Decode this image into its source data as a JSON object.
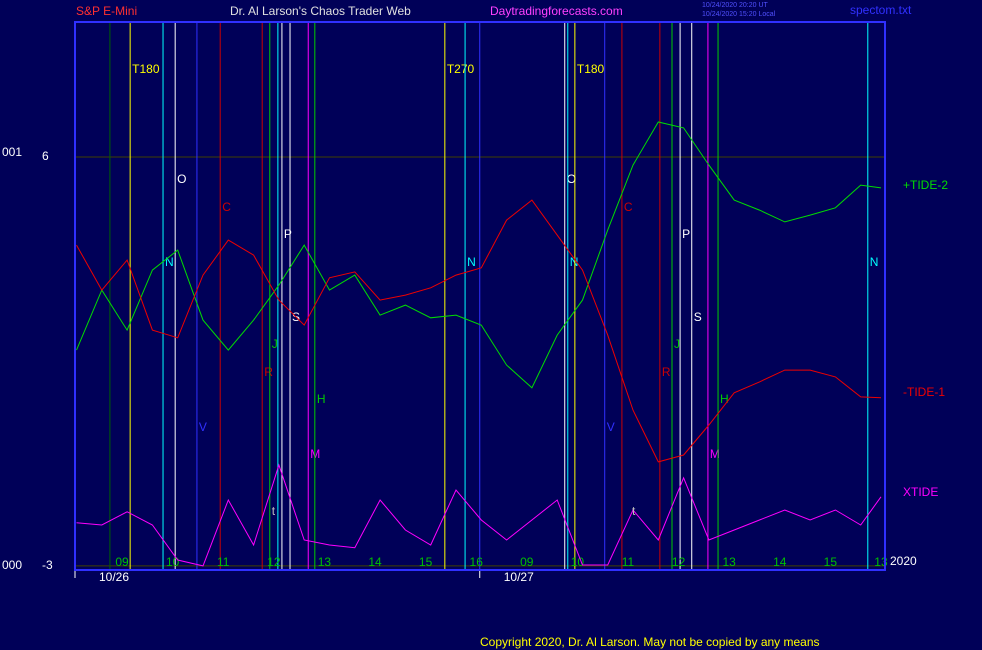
{
  "chart_data": {
    "type": "line",
    "header": {
      "instrument": "S&P E-Mini",
      "title": "Dr. Al Larson's Chaos Trader Web",
      "site": "Daytradingforecasts.com",
      "stamp_ut": "10/24/2020 20:20 UT",
      "stamp_local": "10/24/2020 15:20 Local",
      "file": "spectom.txt",
      "left_labels": [
        "001",
        "000"
      ],
      "year": "2020",
      "copyright": "Copyright 2020, Dr. Al Larson. May not be copied by any means"
    },
    "x": [
      8.1,
      8.6,
      9.1,
      9.6,
      10.1,
      10.6,
      11.1,
      11.6,
      12.1,
      12.6,
      13.1,
      13.6,
      14.1,
      14.6,
      15.1,
      15.6,
      16.1,
      16.6,
      17.1,
      17.6,
      18.1,
      18.6,
      19.1,
      19.6,
      20.1,
      20.6,
      21.1,
      21.6,
      22.1,
      22.6,
      23.1,
      23.6,
      24.0
    ],
    "series": [
      {
        "name": "+TIDE-2",
        "color": "#00dd00",
        "values": [
          1.75,
          3.07,
          2.19,
          3.51,
          3.95,
          2.41,
          1.75,
          2.41,
          3.18,
          4.06,
          3.07,
          3.4,
          2.52,
          2.74,
          2.46,
          2.52,
          2.3,
          1.42,
          0.92,
          2.08,
          2.85,
          4.39,
          5.82,
          6.77,
          6.64,
          5.82,
          5.05,
          4.83,
          4.57,
          4.72,
          4.88,
          5.38,
          5.32
        ]
      },
      {
        "name": "-TIDE-1",
        "color": "#ee0000",
        "values": [
          4.06,
          3.07,
          3.73,
          2.19,
          2.02,
          3.4,
          4.17,
          3.84,
          2.85,
          2.3,
          3.34,
          3.47,
          2.85,
          2.96,
          3.12,
          3.4,
          3.56,
          4.61,
          5.05,
          4.28,
          3.51,
          2.08,
          0.43,
          -0.71,
          -0.56,
          0.1,
          0.81,
          1.05,
          1.31,
          1.31,
          1.16,
          0.72,
          0.7
        ]
      },
      {
        "name": "XTIDE",
        "color": "#ff00ff",
        "values": [
          -2.05,
          -2.1,
          -1.81,
          -2.1,
          -2.87,
          -3.0,
          -1.55,
          -2.54,
          -0.78,
          -2.43,
          -2.54,
          -2.6,
          -1.55,
          -2.21,
          -2.54,
          -1.33,
          -1.99,
          -2.43,
          -1.99,
          -1.55,
          -2.98,
          -2.98,
          -1.77,
          -2.43,
          -1.06,
          -2.43,
          -2.21,
          -1.99,
          -1.77,
          -1.99,
          -1.77,
          -2.1,
          -1.48
        ]
      }
    ],
    "markers": [
      {
        "x": 8.76,
        "color": "#006000",
        "label": null
      },
      {
        "x": 9.16,
        "color": "#ffff00",
        "label": "T180"
      },
      {
        "x": 9.81,
        "color": "#00ffff",
        "label": "N"
      },
      {
        "x": 10.05,
        "color": "#ffffff",
        "label": "O"
      },
      {
        "x": 10.48,
        "color": "#3030ff",
        "label": "V"
      },
      {
        "x": 10.94,
        "color": "#cc0000",
        "label": "C"
      },
      {
        "x": 11.77,
        "color": "#cc0000",
        "label": "R"
      },
      {
        "x": 11.92,
        "color": "#00cc00",
        "label": "J"
      },
      {
        "x": 12.08,
        "color": "#00ffff",
        "label": null
      },
      {
        "x": 12.16,
        "color": "#ffffff",
        "label": "P"
      },
      {
        "x": 12.32,
        "color": "#ffffff",
        "label": "S"
      },
      {
        "x": 12.68,
        "color": "#ff00ff",
        "label": "M"
      },
      {
        "x": 12.81,
        "color": "#00cc00",
        "label": "H"
      },
      {
        "x": 15.38,
        "color": "#ffff00",
        "label": "T270"
      },
      {
        "x": 15.78,
        "color": "#00ffff",
        "label": "N"
      },
      {
        "x": 16.07,
        "color": "#3030ff",
        "label": null
      },
      {
        "x": 17.75,
        "color": "#ffffff",
        "label": "O"
      },
      {
        "x": 17.81,
        "color": "#00ffff",
        "label": "N"
      },
      {
        "x": 17.95,
        "color": "#ffff00",
        "label": "T180"
      },
      {
        "x": 18.54,
        "color": "#3030ff",
        "label": "V"
      },
      {
        "x": 18.88,
        "color": "#cc0000",
        "label": "C"
      },
      {
        "x": 19.63,
        "color": "#cc0000",
        "label": "R"
      },
      {
        "x": 19.87,
        "color": "#00cc00",
        "label": "J"
      },
      {
        "x": 20.03,
        "color": "#ffffff",
        "label": "P"
      },
      {
        "x": 20.26,
        "color": "#ffffff",
        "label": "S"
      },
      {
        "x": 20.58,
        "color": "#ff00ff",
        "label": "M"
      },
      {
        "x": 20.78,
        "color": "#00cc00",
        "label": "H"
      },
      {
        "x": 23.74,
        "color": "#00ffff",
        "label": "N"
      }
    ],
    "annotations": [
      {
        "x": 11.96,
        "y": -1.81,
        "label": "t"
      },
      {
        "x": 19.08,
        "y": -1.81,
        "label": "t"
      }
    ],
    "xlim": [
      8.07,
      24.08
    ],
    "xticks": [
      {
        "value": 9,
        "label": "09"
      },
      10,
      11,
      12,
      13,
      14,
      15,
      16,
      {
        "value": 17,
        "label": "09"
      },
      {
        "value": 18,
        "label": "10"
      },
      {
        "value": 19,
        "label": "11"
      },
      {
        "value": 20,
        "label": "12"
      },
      {
        "value": 21,
        "label": "13"
      },
      {
        "value": 22,
        "label": "14"
      },
      {
        "value": 23,
        "label": "15"
      },
      {
        "value": 24,
        "label": "13"
      }
    ],
    "day_ticks": [
      {
        "value": 8.07,
        "label": "10/26"
      },
      {
        "value": 16.07,
        "label": "10/27"
      }
    ],
    "ylim": [
      -3.09,
      8.97
    ],
    "yticks": [
      -3,
      6
    ],
    "grid": true
  }
}
